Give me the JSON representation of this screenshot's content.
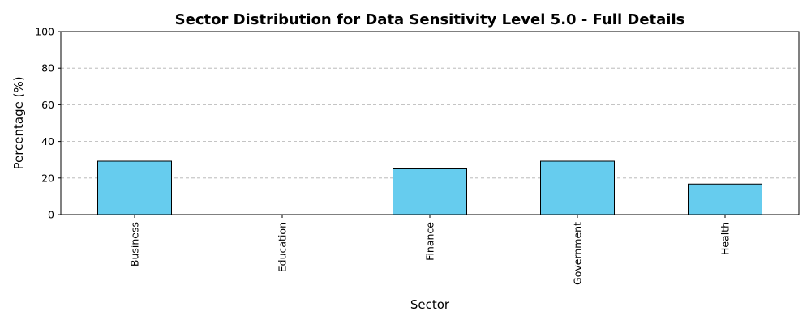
{
  "chart_data": {
    "type": "bar",
    "title": "Sector Distribution for Data Sensitivity Level 5.0 - Full Details",
    "xlabel": "Sector",
    "ylabel": "Percentage (%)",
    "categories": [
      "Business",
      "Education",
      "Finance",
      "Government",
      "Health"
    ],
    "values": [
      29.2,
      0,
      25.0,
      29.2,
      16.7
    ],
    "ylim": [
      0,
      100
    ],
    "yticks": [
      "0",
      "20",
      "40",
      "60",
      "80",
      "100"
    ],
    "grid": "horizontal dashed",
    "bar_color": "#66ccee",
    "edge_color": "#000000"
  }
}
